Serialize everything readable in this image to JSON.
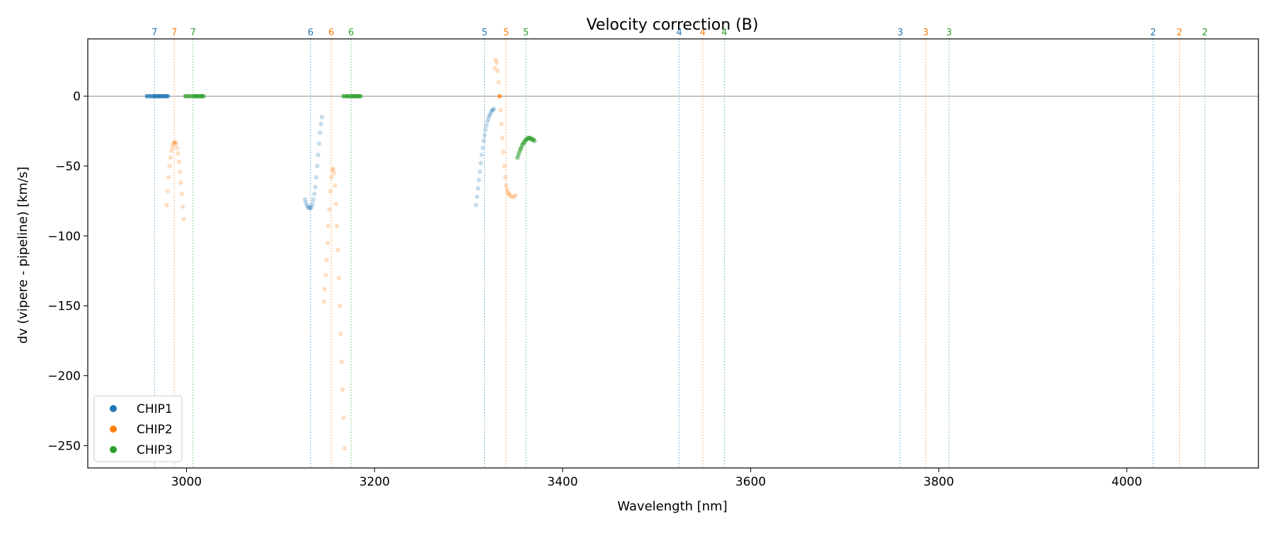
{
  "chart_data": {
    "type": "scatter",
    "title": "Velocity correction (B)",
    "xlabel": "Wavelength [nm]",
    "ylabel": "dv (vipere - pipeline) [km/s]",
    "xlim": [
      2895,
      4140
    ],
    "ylim": [
      -266,
      41
    ],
    "xticks": [
      3000,
      3200,
      3400,
      3600,
      3800,
      4000
    ],
    "yticks": [
      0,
      -50,
      -100,
      -150,
      -200,
      -250
    ],
    "ytick_labels": [
      "0",
      "−50",
      "−100",
      "−150",
      "−200",
      "−250"
    ],
    "grid": false,
    "zero_line": 0,
    "legend": {
      "placement": "lower-left",
      "entries": [
        "CHIP1",
        "CHIP2",
        "CHIP3"
      ]
    },
    "colors": {
      "CHIP1": "#1f77b4",
      "CHIP2": "#ff7f0e",
      "CHIP3": "#2ca02c"
    },
    "order_markers": [
      {
        "chip": "CHIP1",
        "order": "7",
        "x": 2966
      },
      {
        "chip": "CHIP2",
        "order": "7",
        "x": 2987
      },
      {
        "chip": "CHIP3",
        "order": "7",
        "x": 3007
      },
      {
        "chip": "CHIP1",
        "order": "6",
        "x": 3132
      },
      {
        "chip": "CHIP2",
        "order": "6",
        "x": 3154
      },
      {
        "chip": "CHIP3",
        "order": "6",
        "x": 3175
      },
      {
        "chip": "CHIP1",
        "order": "5",
        "x": 3317
      },
      {
        "chip": "CHIP2",
        "order": "5",
        "x": 3340
      },
      {
        "chip": "CHIP3",
        "order": "5",
        "x": 3361
      },
      {
        "chip": "CHIP1",
        "order": "4",
        "x": 3524
      },
      {
        "chip": "CHIP2",
        "order": "4",
        "x": 3549
      },
      {
        "chip": "CHIP3",
        "order": "4",
        "x": 3572
      },
      {
        "chip": "CHIP1",
        "order": "3",
        "x": 3759
      },
      {
        "chip": "CHIP2",
        "order": "3",
        "x": 3786
      },
      {
        "chip": "CHIP3",
        "order": "3",
        "x": 3811
      },
      {
        "chip": "CHIP1",
        "order": "2",
        "x": 4028
      },
      {
        "chip": "CHIP2",
        "order": "2",
        "x": 4056
      },
      {
        "chip": "CHIP3",
        "order": "2",
        "x": 4083
      }
    ],
    "series": [
      {
        "name": "CHIP1",
        "points": [
          [
            2958,
            0
          ],
          [
            2961,
            0
          ],
          [
            2964,
            0
          ],
          [
            2966,
            0
          ],
          [
            2968,
            0
          ],
          [
            2970,
            0
          ],
          [
            2972,
            0
          ],
          [
            2974,
            0
          ],
          [
            2976,
            0
          ],
          [
            2978,
            0
          ],
          [
            2980,
            0
          ],
          [
            3126,
            -74
          ],
          [
            3127,
            -76
          ],
          [
            3128,
            -78
          ],
          [
            3129,
            -79
          ],
          [
            3130,
            -80
          ],
          [
            3131,
            -80
          ],
          [
            3132,
            -80
          ],
          [
            3133,
            -79
          ],
          [
            3134,
            -77
          ],
          [
            3135,
            -74
          ],
          [
            3136,
            -70
          ],
          [
            3137,
            -65
          ],
          [
            3138,
            -58
          ],
          [
            3139,
            -50
          ],
          [
            3140,
            -42
          ],
          [
            3141,
            -34
          ],
          [
            3142,
            -26
          ],
          [
            3143,
            -20
          ],
          [
            3144,
            -15
          ],
          [
            3308,
            -78
          ],
          [
            3309,
            -72
          ],
          [
            3310,
            -66
          ],
          [
            3311,
            -60
          ],
          [
            3312,
            -54
          ],
          [
            3313,
            -48
          ],
          [
            3314,
            -42
          ],
          [
            3315,
            -37
          ],
          [
            3316,
            -32
          ],
          [
            3317,
            -28
          ],
          [
            3318,
            -24
          ],
          [
            3319,
            -21
          ],
          [
            3320,
            -18
          ],
          [
            3321,
            -16
          ],
          [
            3322,
            -14
          ],
          [
            3323,
            -13
          ],
          [
            3324,
            -11
          ],
          [
            3325,
            -10
          ],
          [
            3326,
            -10
          ],
          [
            3327,
            -9
          ]
        ]
      },
      {
        "name": "CHIP2",
        "points": [
          [
            2979,
            -78
          ],
          [
            2980,
            -68
          ],
          [
            2981,
            -58
          ],
          [
            2982,
            -50
          ],
          [
            2983,
            -44
          ],
          [
            2984,
            -39
          ],
          [
            2985,
            -36
          ],
          [
            2986,
            -34
          ],
          [
            2987,
            -33
          ],
          [
            2988,
            -33
          ],
          [
            2989,
            -34
          ],
          [
            2990,
            -37
          ],
          [
            2991,
            -41
          ],
          [
            2992,
            -47
          ],
          [
            2993,
            -54
          ],
          [
            2994,
            -62
          ],
          [
            2995,
            -70
          ],
          [
            2996,
            -79
          ],
          [
            2997,
            -88
          ],
          [
            3146,
            -147
          ],
          [
            3147,
            -138
          ],
          [
            3148,
            -128
          ],
          [
            3149,
            -117
          ],
          [
            3150,
            -105
          ],
          [
            3151,
            -93
          ],
          [
            3152,
            -81
          ],
          [
            3153,
            -68
          ],
          [
            3154,
            -58
          ],
          [
            3155,
            -53
          ],
          [
            3156,
            -52
          ],
          [
            3157,
            -55
          ],
          [
            3158,
            -64
          ],
          [
            3159,
            -77
          ],
          [
            3160,
            -93
          ],
          [
            3161,
            -110
          ],
          [
            3162,
            -130
          ],
          [
            3163,
            -150
          ],
          [
            3164,
            -170
          ],
          [
            3165,
            -190
          ],
          [
            3166,
            -210
          ],
          [
            3167,
            -230
          ],
          [
            3168,
            -252
          ],
          [
            3328,
            20
          ],
          [
            3329,
            26
          ],
          [
            3330,
            24
          ],
          [
            3331,
            18
          ],
          [
            3332,
            10
          ],
          [
            3333,
            0
          ],
          [
            3334,
            -10
          ],
          [
            3335,
            -20
          ],
          [
            3336,
            -30
          ],
          [
            3337,
            -40
          ],
          [
            3338,
            -50
          ],
          [
            3339,
            -58
          ],
          [
            3340,
            -64
          ],
          [
            3341,
            -67
          ],
          [
            3342,
            -69
          ],
          [
            3343,
            -70
          ],
          [
            3344,
            -71
          ],
          [
            3346,
            -72
          ],
          [
            3348,
            -72
          ],
          [
            3350,
            -71
          ]
        ]
      },
      {
        "name": "CHIP3",
        "points": [
          [
            2999,
            0
          ],
          [
            3002,
            0
          ],
          [
            3005,
            0
          ],
          [
            3008,
            0
          ],
          [
            3010,
            0
          ],
          [
            3012,
            0
          ],
          [
            3014,
            0
          ],
          [
            3016,
            0
          ],
          [
            3018,
            0
          ],
          [
            3167,
            0
          ],
          [
            3170,
            0
          ],
          [
            3172,
            0
          ],
          [
            3175,
            0
          ],
          [
            3177,
            0
          ],
          [
            3179,
            0
          ],
          [
            3181,
            0
          ],
          [
            3183,
            0
          ],
          [
            3185,
            0
          ],
          [
            3352,
            -44
          ],
          [
            3353,
            -42
          ],
          [
            3354,
            -40
          ],
          [
            3355,
            -38
          ],
          [
            3356,
            -37
          ],
          [
            3357,
            -35
          ],
          [
            3358,
            -34
          ],
          [
            3359,
            -33
          ],
          [
            3360,
            -32
          ],
          [
            3361,
            -31
          ],
          [
            3362,
            -31
          ],
          [
            3363,
            -30
          ],
          [
            3364,
            -30
          ],
          [
            3365,
            -30
          ],
          [
            3366,
            -30
          ],
          [
            3367,
            -31
          ],
          [
            3368,
            -31
          ],
          [
            3369,
            -31
          ],
          [
            3370,
            -32
          ]
        ]
      }
    ]
  }
}
